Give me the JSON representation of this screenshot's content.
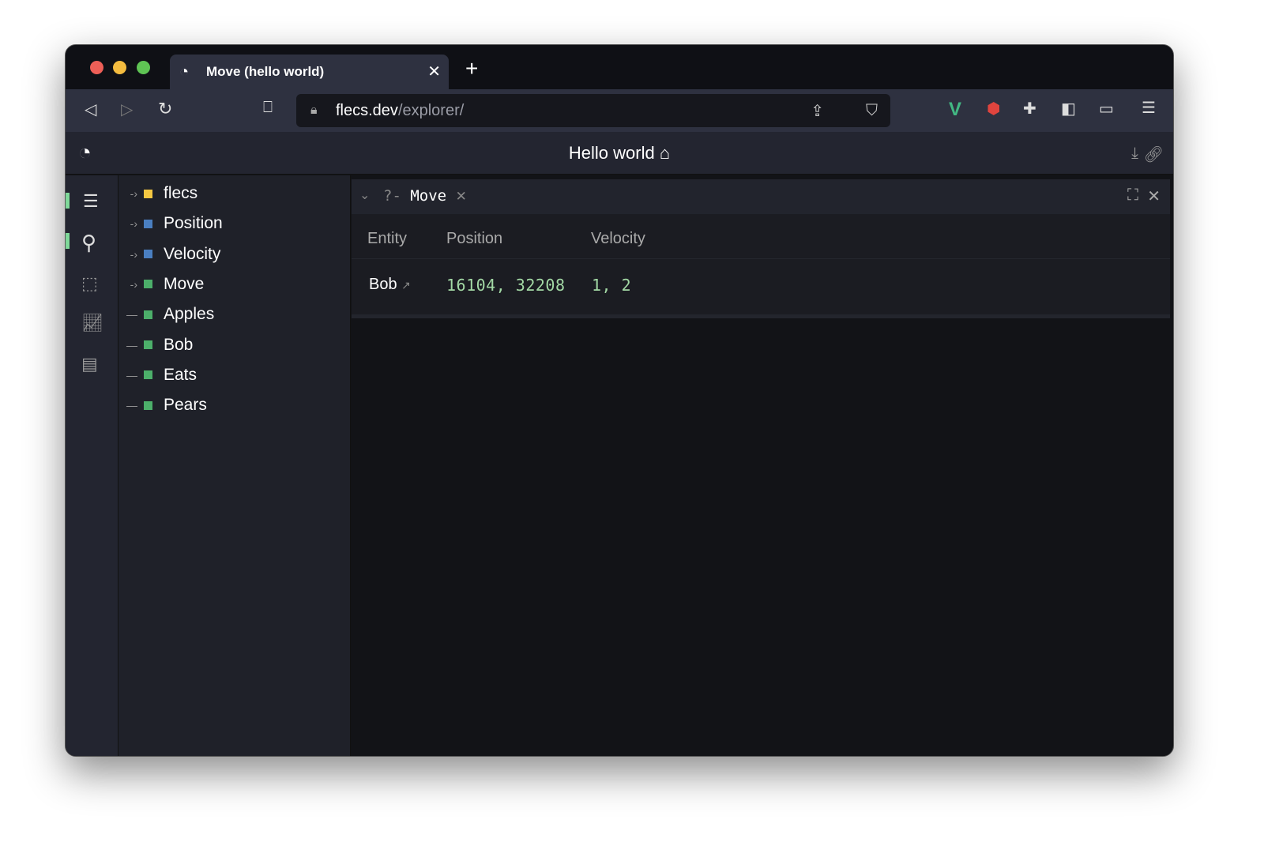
{
  "browser": {
    "tab_title": "Move (hello world)",
    "url_host": "flecs.dev",
    "url_path": "/explorer/"
  },
  "app": {
    "title": "Hello world"
  },
  "tree": [
    {
      "label": "flecs",
      "color": "#f5c842",
      "expandable": true
    },
    {
      "label": "Position",
      "color": "#4a7fc1",
      "expandable": true
    },
    {
      "label": "Velocity",
      "color": "#4a7fc1",
      "expandable": true
    },
    {
      "label": "Move",
      "color": "#4caf6a",
      "expandable": true
    },
    {
      "label": "Apples",
      "color": "#4caf6a",
      "expandable": false
    },
    {
      "label": "Bob",
      "color": "#4caf6a",
      "expandable": false
    },
    {
      "label": "Eats",
      "color": "#4caf6a",
      "expandable": false
    },
    {
      "label": "Pears",
      "color": "#4caf6a",
      "expandable": false
    }
  ],
  "query": {
    "prefix": "?-",
    "name": "Move",
    "columns": [
      "Entity",
      "Position",
      "Velocity"
    ],
    "rows": [
      {
        "entity": "Bob",
        "position": "16104, 32208",
        "velocity": "1, 2"
      }
    ]
  }
}
